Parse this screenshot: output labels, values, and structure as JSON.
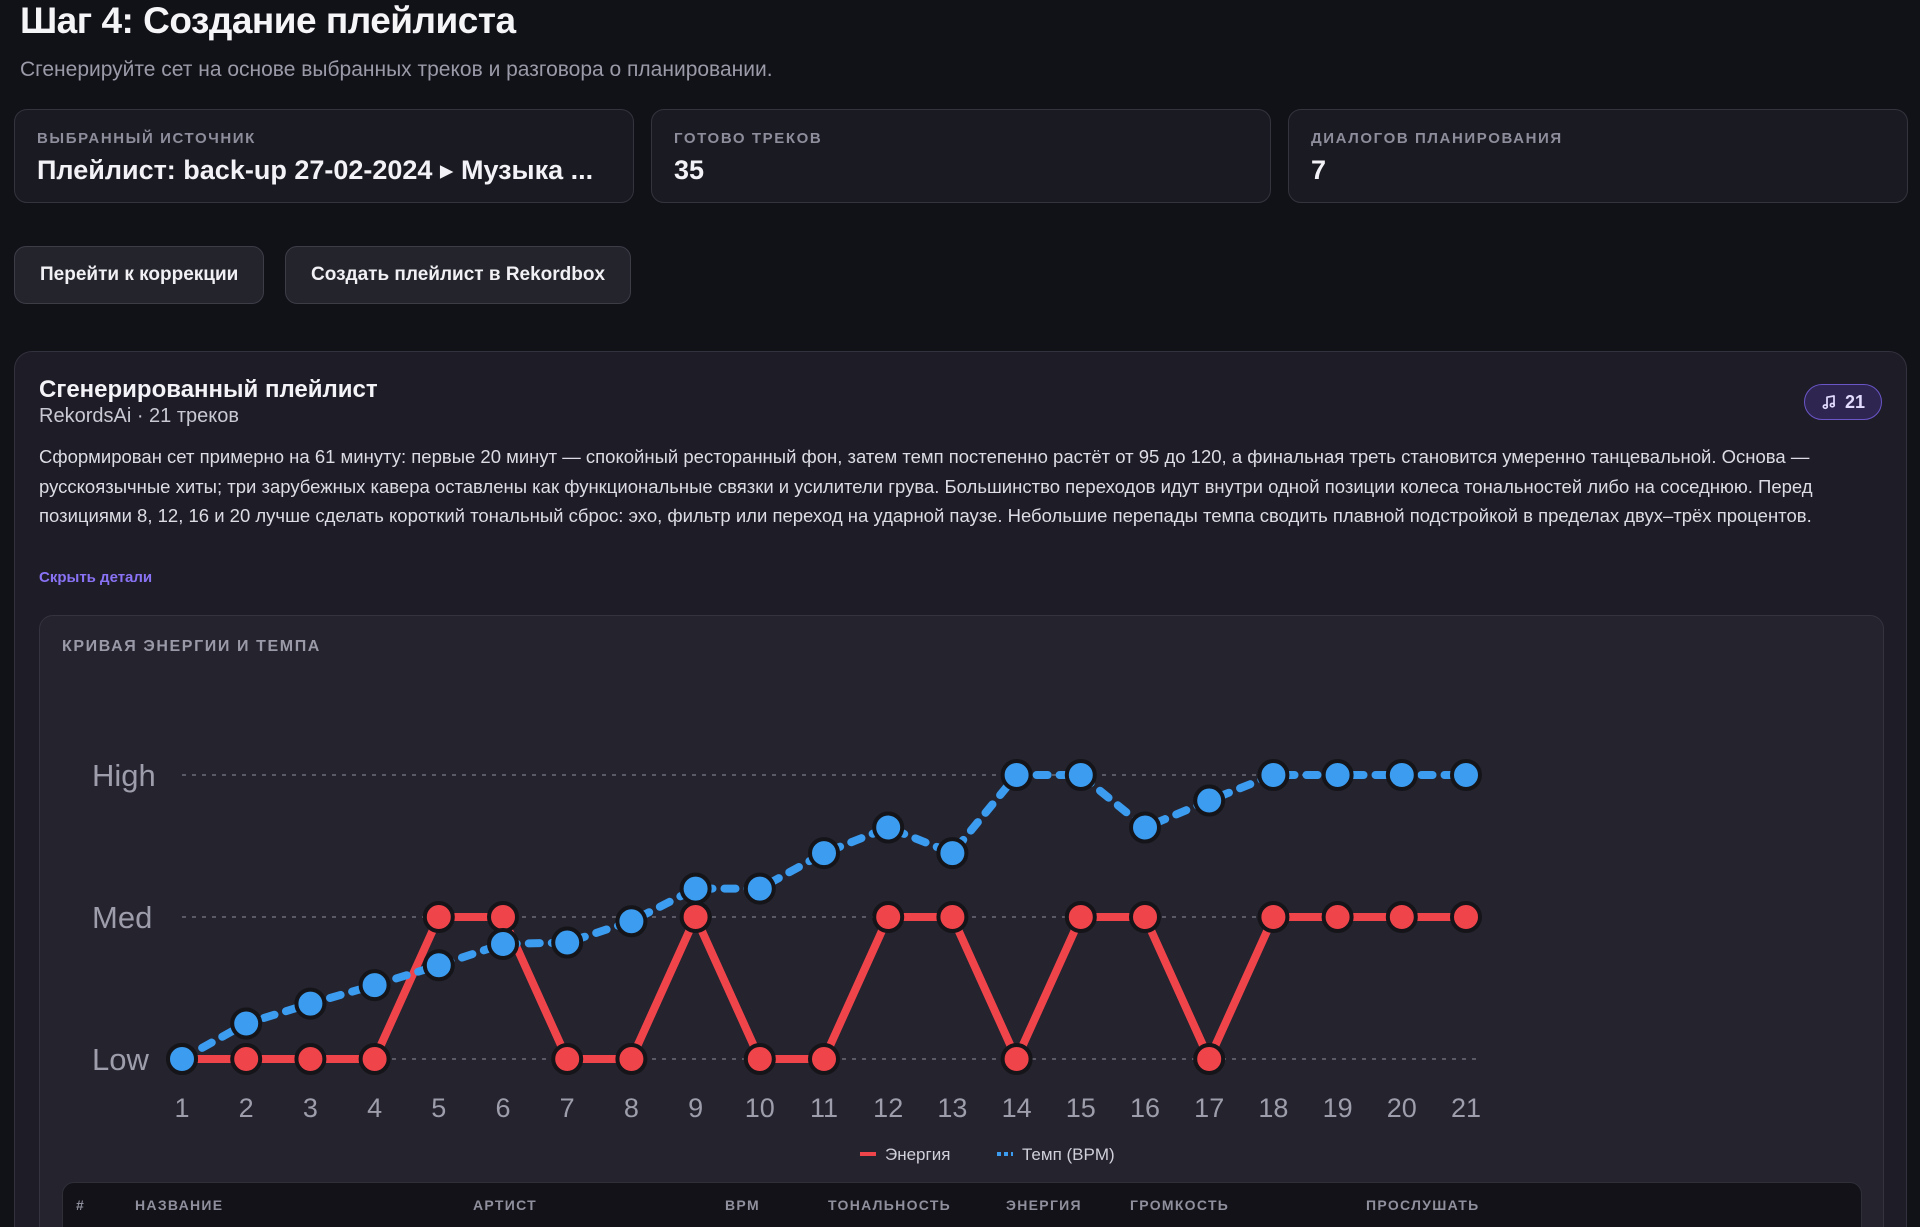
{
  "header": {
    "title": "Шаг 4: Создание плейлиста",
    "subtitle": "Сгенерируйте сет на основе выбранных треков и разговора о планировании."
  },
  "stats": [
    {
      "label": "ВЫБРАННЫЙ ИСТОЧНИК",
      "value": "Плейлист: back-up 27-02-2024 ▸ Музыка ..."
    },
    {
      "label": "ГОТОВО ТРЕКОВ",
      "value": "35"
    },
    {
      "label": "ДИАЛОГОВ ПЛАНИРОВАНИЯ",
      "value": "7"
    }
  ],
  "actions": {
    "go_to_correction": "Перейти к коррекции",
    "create_in_rekordbox": "Создать плейлист в Rekordbox"
  },
  "playlist": {
    "title": "Сгенерированный плейлист",
    "meta": "RekordsAi · 21 треков",
    "badge_count": "21",
    "badge_icon": "music-note-icon",
    "description": "Сформирован сет примерно на 61 минуту: первые 20 минут — спокойный ресторанный фон, затем темп постепенно растёт от 95 до 120, а финальная треть становится умеренно танцевальной. Основа — русскоязычные хиты; три зарубежных кавера оставлены как функциональные связки и усилители грува. Большинство переходов идут внутри одной позиции колеса тональностей либо на соседнюю. Перед позициями 8, 12, 16 и 20 лучше сделать короткий тональный сброс: эхо, фильтр или переход на ударной паузе. Небольшие перепады темпа сводить плавной подстройкой в пределах двух–трёх процентов.",
    "toggle_label": "Скрыть детали"
  },
  "chart_title": "КРИВАЯ ЭНЕРГИИ И ТЕМПА",
  "chart_data": {
    "type": "line",
    "x": [
      1,
      2,
      3,
      4,
      5,
      6,
      7,
      8,
      9,
      10,
      11,
      12,
      13,
      14,
      15,
      16,
      17,
      18,
      19,
      20,
      21
    ],
    "y_ticks": [
      "Low",
      "Med",
      "High"
    ],
    "ylim": [
      0,
      2
    ],
    "series": [
      {
        "name": "Энергия",
        "color": "#f0444b",
        "style": "solid",
        "values": [
          0,
          0,
          0,
          0,
          1,
          1,
          0,
          0,
          1,
          0,
          0,
          1,
          1,
          0,
          1,
          1,
          0,
          1,
          1,
          1,
          1
        ]
      },
      {
        "name": "Темп (BPM)",
        "color": "#3b9cf0",
        "style": "dashed",
        "values": [
          0,
          0.25,
          0.39,
          0.52,
          0.66,
          0.81,
          0.82,
          0.97,
          1.2,
          1.2,
          1.45,
          1.63,
          1.45,
          2,
          2,
          1.63,
          1.82,
          2,
          2,
          2,
          2
        ]
      }
    ],
    "grid": true,
    "legend": "bottom"
  },
  "table": {
    "columns": [
      "#",
      "НАЗВАНИЕ",
      "АРТИСТ",
      "BPM",
      "ТОНАЛЬНОСТЬ",
      "ЭНЕРГИЯ",
      "ГРОМКОСТЬ",
      "ПРОСЛУШАТЬ"
    ]
  }
}
